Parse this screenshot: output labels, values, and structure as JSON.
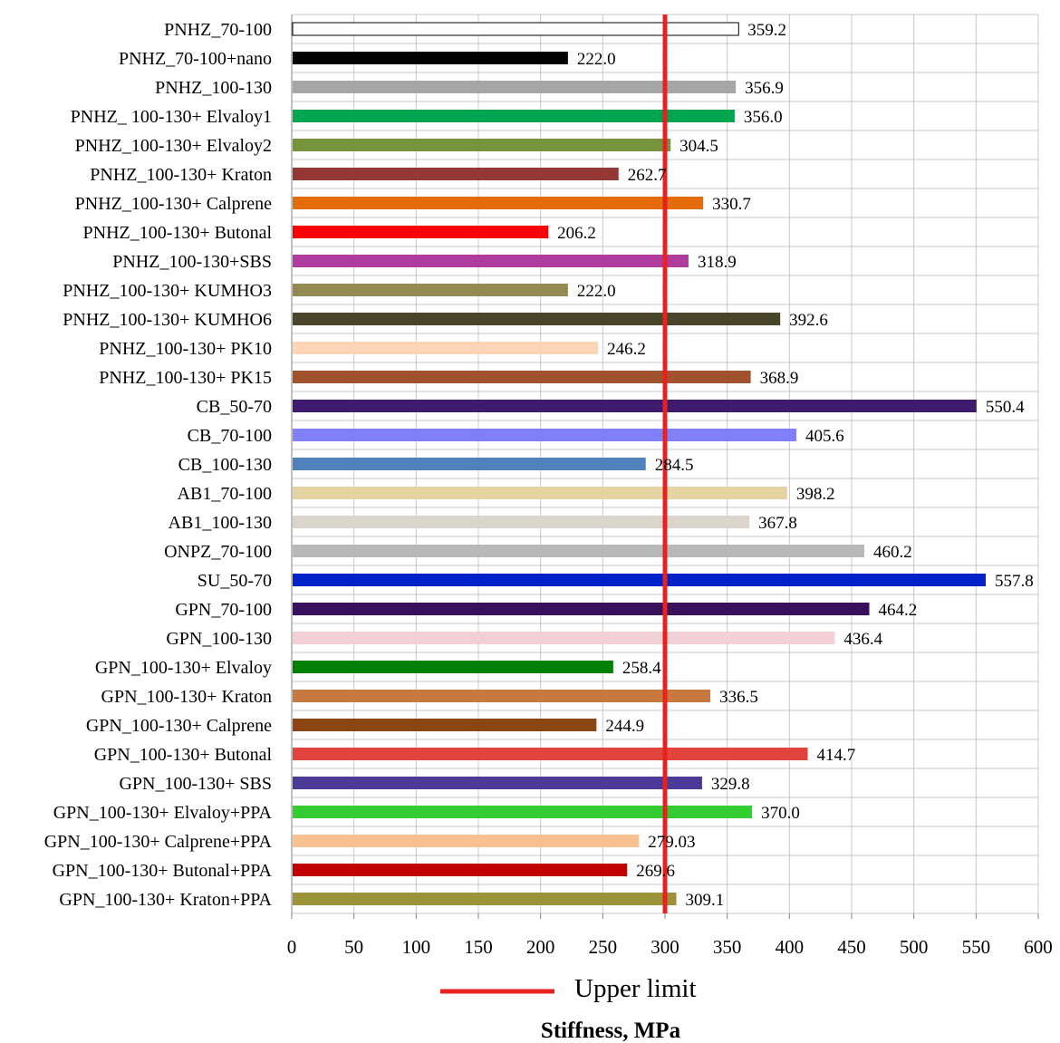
{
  "chart_data": {
    "type": "bar",
    "orientation": "horizontal",
    "title": "",
    "xlabel": "Stiffness, MPa",
    "ylabel": "",
    "xlim": [
      0,
      600
    ],
    "xticks": [
      "0",
      "50",
      "100",
      "150",
      "200",
      "250",
      "300",
      "350",
      "400",
      "450",
      "500",
      "550",
      "600"
    ],
    "grid": true,
    "legend": {
      "position": "bottom",
      "entries": [
        {
          "label": "Upper limit",
          "color": "#e8201e"
        }
      ]
    },
    "reference_line": {
      "value": 300,
      "label": "Upper limit",
      "color": "#e8201e"
    },
    "categories": [
      "PNHZ_70-100",
      "PNHZ_70-100+nano",
      "PNHZ_100-130",
      "PNHZ_ 100-130+ Elvaloy1",
      "PNHZ_100-130+ Elvaloy2",
      "PNHZ_100-130+ Kraton",
      "PNHZ_100-130+ Calprene",
      "PNHZ_100-130+ Butonal",
      "PNHZ_100-130+SBS",
      "PNHZ_100-130+ KUMHO3",
      "PNHZ_100-130+ KUMHO6",
      "PNHZ_100-130+ PK10",
      "PNHZ_100-130+ PK15",
      "CB_50-70",
      "CB_70-100",
      "CB_100-130",
      "AB1_70-100",
      "AB1_100-130",
      "ONPZ_70-100",
      "SU_50-70",
      "GPN_70-100",
      "GPN_100-130",
      "GPN_100-130+ Elvaloy",
      "GPN_100-130+ Kraton",
      "GPN_100-130+ Calprene",
      "GPN_100-130+ Butonal",
      "GPN_100-130+ SBS",
      "GPN_100-130+ Elvaloy+PPA",
      "GPN_100-130+ Calprene+PPA",
      "GPN_100-130+ Butonal+PPA",
      "GPN_100-130+ Kraton+PPA"
    ],
    "values": [
      359.2,
      222.0,
      356.9,
      356.0,
      304.5,
      262.7,
      330.7,
      206.2,
      318.9,
      222.0,
      392.6,
      246.2,
      368.9,
      550.4,
      405.6,
      284.5,
      398.2,
      367.8,
      460.2,
      557.8,
      464.2,
      436.4,
      258.4,
      336.5,
      244.9,
      414.7,
      329.8,
      370.0,
      279.03,
      269.6,
      309.1
    ],
    "value_labels": [
      "359.2",
      "222.0",
      "356.9",
      "356.0",
      "304.5",
      "262.7",
      "330.7",
      "206.2",
      "318.9",
      "222.0",
      "392.6",
      "246.2",
      "368.9",
      "550.4",
      "405.6",
      "284.5",
      "398.2",
      "367.8",
      "460.2",
      "557.8",
      "464.2",
      "436.4",
      "258.4",
      "336.5",
      "244.9",
      "414.7",
      "329.8",
      "370.0",
      "279.03",
      "269.6",
      "309.1"
    ],
    "colors": [
      "#ffffff",
      "#000000",
      "#a6a6a6",
      "#00a550",
      "#77933c",
      "#953735",
      "#e46c0a",
      "#ff0000",
      "#b03c9e",
      "#948a54",
      "#4a452a",
      "#fcd5b5",
      "#a0522d",
      "#3f1a6e",
      "#8080ff",
      "#4f81bd",
      "#e6d3a3",
      "#dcd5cc",
      "#b8b8b8",
      "#0022c8",
      "#3a0f5c",
      "#f2d0d6",
      "#008000",
      "#c87a3e",
      "#8b4513",
      "#e0443c",
      "#4b3a9a",
      "#33cc33",
      "#fac090",
      "#c00000",
      "#9c9238"
    ]
  }
}
